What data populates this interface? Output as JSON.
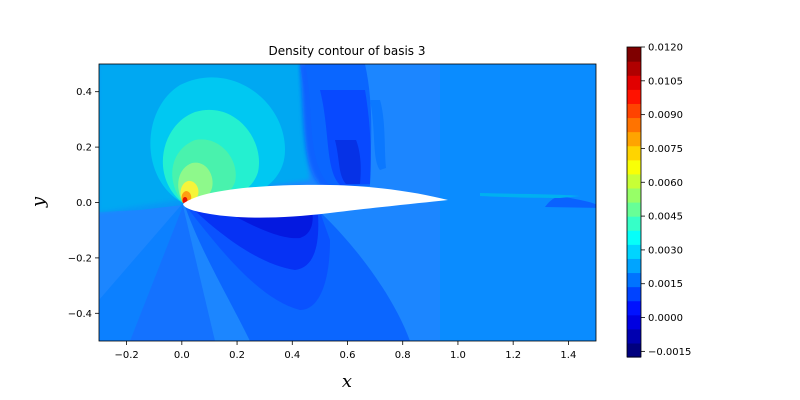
{
  "chart_data": {
    "type": "heatmap",
    "title": "Density contour of basis 3",
    "xlabel": "x",
    "ylabel": "y",
    "xlim": [
      -0.3,
      1.5
    ],
    "ylim": [
      -0.5,
      0.5
    ],
    "xticks": [
      -0.2,
      0.0,
      0.2,
      0.4,
      0.6,
      0.8,
      1.0,
      1.2,
      1.4
    ],
    "xtick_labels": [
      "−0.2",
      "0.0",
      "0.2",
      "0.4",
      "0.6",
      "0.8",
      "1.0",
      "1.2",
      "1.4"
    ],
    "yticks": [
      0.4,
      0.2,
      0.0,
      -0.2,
      -0.4
    ],
    "ytick_labels": [
      "0.4",
      "0.2",
      "0.0",
      "−0.2",
      "−0.4"
    ],
    "colorbar": {
      "range": [
        -0.00175,
        0.012
      ],
      "ticks": [
        0.012,
        0.0105,
        0.009,
        0.0075,
        0.006,
        0.0045,
        0.003,
        0.0015,
        0.0,
        -0.0015
      ],
      "tick_labels": [
        "0.0120",
        "0.0105",
        "0.0090",
        "0.0075",
        "0.0060",
        "0.0045",
        "0.0030",
        "0.0015",
        "0.0000",
        "−0.0015"
      ],
      "levels": 22,
      "colormap": [
        "#00007f",
        "#0000ff",
        "#007fff",
        "#00ffff",
        "#7fff7f",
        "#ffff00",
        "#ff7f00",
        "#ff0000",
        "#7f0000"
      ]
    },
    "grid": false,
    "annotations": [
      {
        "feature": "airfoil",
        "x_range": [
          0.0,
          0.97
        ],
        "color": "#ffffff"
      }
    ]
  }
}
